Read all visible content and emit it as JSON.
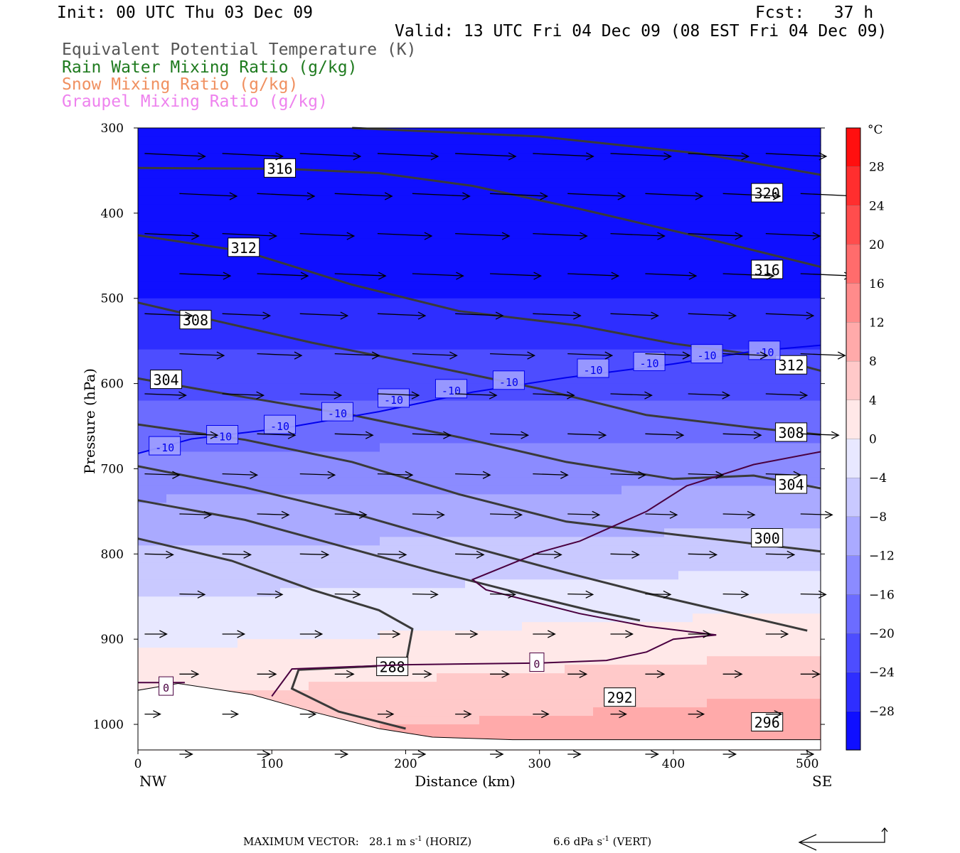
{
  "header": {
    "init": "Init: 00 UTC Thu 03 Dec 09",
    "fcst": "Fcst:   37 h",
    "valid": "Valid: 13 UTC Fri 04 Dec 09 (08 EST Fri 04 Dec 09)",
    "fields": [
      {
        "label": "Equivalent Potential Temperature (K)",
        "color": "#555555"
      },
      {
        "label": "Rain Water Mixing Ratio (g/kg)",
        "color": "#1e7a1e"
      },
      {
        "label": "Snow Mixing Ratio (g/kg)",
        "color": "#f09060"
      },
      {
        "label": "Graupel Mixing Ratio (g/kg)",
        "color": "#ee82ee"
      }
    ]
  },
  "footer": {
    "label": "MAXIMUM VECTOR:",
    "horiz": "28.1 m s",
    "horiz_exp": "-1",
    "horiz_tag": "(HORIZ)",
    "vert": "6.6 dPa s",
    "vert_exp": "-1",
    "vert_tag": "(VERT)"
  },
  "chart_data": {
    "type": "cross-section",
    "xlabel": "Distance (km)",
    "ylabel": "Pressure (hPa)",
    "xlim": [
      0,
      510
    ],
    "ylim": [
      1030,
      300
    ],
    "x_ticks": [
      0,
      100,
      200,
      300,
      400,
      500
    ],
    "y_ticks": [
      300,
      400,
      500,
      600,
      700,
      800,
      900,
      1000
    ],
    "x_end_labels": {
      "left": "NW",
      "right": "SE"
    },
    "colorbar": {
      "unit": "°C",
      "range": [
        -32,
        32
      ],
      "step": 4,
      "labels": [
        28,
        24,
        20,
        16,
        12,
        8,
        4,
        0,
        -4,
        -8,
        -12,
        -16,
        -20,
        -24,
        -28
      ],
      "neg_color": "#0000ff",
      "pos_color": "#ff0000"
    },
    "temperature_field": {
      "reference_lapse_C_per_hPa": 0.068,
      "surface_temp_C": 7,
      "warm_bias_SE_C": 5
    },
    "terrain_pressure": [
      [
        0,
        960
      ],
      [
        30,
        952
      ],
      [
        85,
        965
      ],
      [
        130,
        985
      ],
      [
        180,
        1005
      ],
      [
        220,
        1015
      ],
      [
        280,
        1018
      ],
      [
        510,
        1018
      ]
    ],
    "theta_e_contours": [
      {
        "value": "320",
        "points": [
          [
            160,
            300
          ],
          [
            300,
            310
          ],
          [
            420,
            330
          ],
          [
            510,
            355
          ]
        ],
        "label_at": [
          470,
          376
        ]
      },
      {
        "value": "316",
        "points": [
          [
            0,
            347
          ],
          [
            110,
            348
          ],
          [
            180,
            353
          ],
          [
            250,
            368
          ],
          [
            330,
            395
          ],
          [
            420,
            428
          ],
          [
            510,
            463
          ]
        ],
        "label_at": [
          106,
          347
        ],
        "label2": "316",
        "label2_at": [
          470,
          466
        ]
      },
      {
        "value": "312",
        "points": [
          [
            0,
            426
          ],
          [
            80,
            445
          ],
          [
            160,
            484
          ],
          [
            240,
            515
          ],
          [
            330,
            532
          ],
          [
            400,
            553
          ],
          [
            470,
            568
          ],
          [
            510,
            585
          ]
        ],
        "label_at": [
          79,
          440
        ],
        "label2": "312",
        "label2_at": [
          488,
          578
        ]
      },
      {
        "value": "308",
        "points": [
          [
            0,
            505
          ],
          [
            60,
            527
          ],
          [
            130,
            552
          ],
          [
            220,
            580
          ],
          [
            300,
            606
          ],
          [
            380,
            637
          ],
          [
            460,
            652
          ],
          [
            510,
            660
          ]
        ],
        "label_at": [
          43,
          525
        ],
        "label2": "308",
        "label2_at": [
          488,
          657
        ]
      },
      {
        "value": "304",
        "points": [
          [
            0,
            594
          ],
          [
            80,
            616
          ],
          [
            160,
            637
          ],
          [
            240,
            663
          ],
          [
            320,
            692
          ],
          [
            400,
            712
          ],
          [
            460,
            708
          ],
          [
            510,
            723
          ]
        ],
        "label_at": [
          21,
          595
        ],
        "label2": "304",
        "label2_at": [
          488,
          718
        ]
      },
      {
        "value": "300",
        "points": [
          [
            0,
            648
          ],
          [
            80,
            666
          ],
          [
            160,
            692
          ],
          [
            240,
            730
          ],
          [
            320,
            762
          ],
          [
            400,
            777
          ],
          [
            460,
            788
          ],
          [
            510,
            797
          ]
        ],
        "label_at": [
          470,
          781
        ]
      },
      {
        "value": "296",
        "points": [
          [
            0,
            697
          ],
          [
            80,
            722
          ],
          [
            160,
            752
          ],
          [
            240,
            788
          ],
          [
            320,
            822
          ],
          [
            380,
            846
          ],
          [
            440,
            868
          ],
          [
            500,
            890
          ]
        ],
        "label_at": [
          470,
          997
        ]
      },
      {
        "value": "292",
        "points": [
          [
            0,
            737
          ],
          [
            80,
            760
          ],
          [
            150,
            790
          ],
          [
            220,
            820
          ],
          [
            290,
            848
          ],
          [
            340,
            867
          ],
          [
            375,
            878
          ]
        ],
        "label_at": [
          360,
          968
        ]
      },
      {
        "value": "288",
        "points": [
          [
            0,
            782
          ],
          [
            70,
            808
          ],
          [
            130,
            842
          ],
          [
            180,
            866
          ],
          [
            205,
            888
          ],
          [
            200,
            930
          ],
          [
            120,
            936
          ],
          [
            115,
            958
          ],
          [
            150,
            985
          ],
          [
            200,
            1005
          ]
        ],
        "label_at": [
          190,
          932
        ]
      }
    ],
    "zero_isotherm_label": "0",
    "minus10_isotherm": {
      "value": "-10",
      "points": [
        [
          0,
          682
        ],
        [
          40,
          665
        ],
        [
          110,
          652
        ],
        [
          180,
          633
        ],
        [
          250,
          610
        ],
        [
          320,
          593
        ],
        [
          400,
          577
        ],
        [
          460,
          562
        ],
        [
          510,
          555
        ]
      ],
      "label_at": [
        [
          20,
          673
        ],
        [
          63,
          660
        ],
        [
          106,
          648
        ],
        [
          149,
          633
        ],
        [
          191,
          617
        ],
        [
          234,
          606
        ],
        [
          277,
          596
        ],
        [
          340,
          582
        ],
        [
          382,
          574
        ],
        [
          425,
          565
        ],
        [
          468,
          561
        ]
      ]
    }
  }
}
